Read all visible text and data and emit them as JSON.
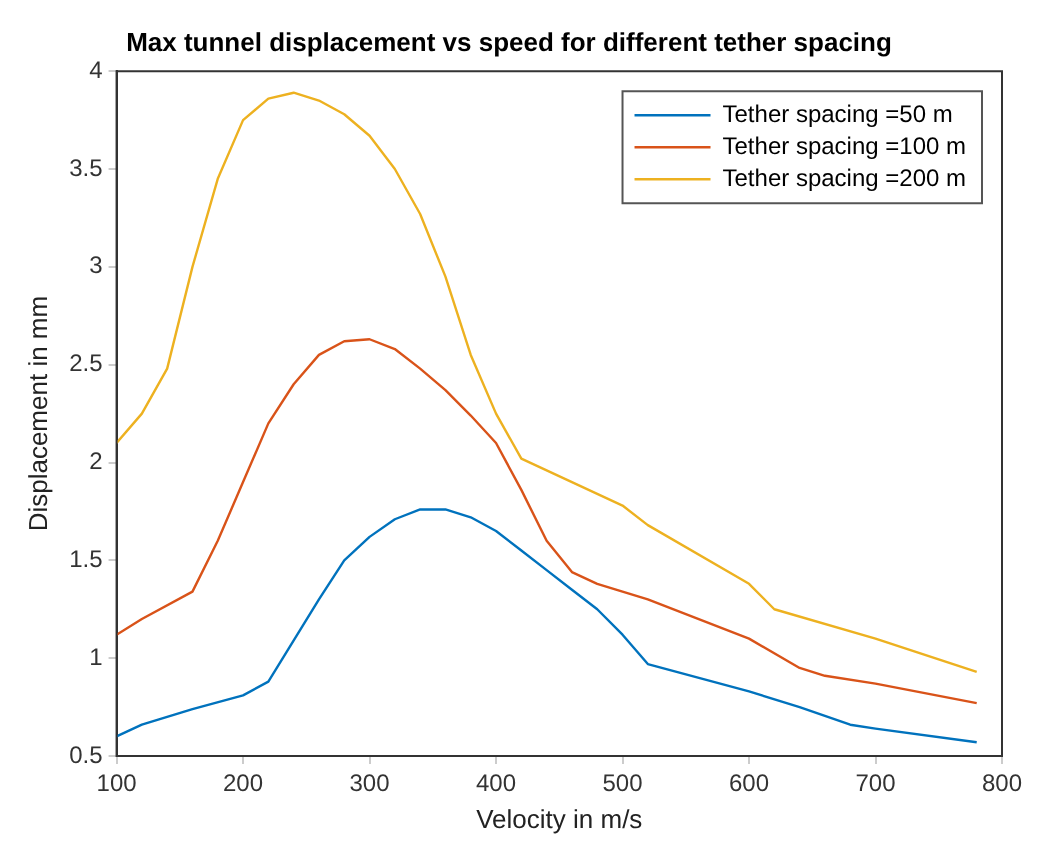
{
  "chart_data": {
    "type": "line",
    "title": "Max tunnel displacement vs speed for different tether spacing",
    "xlabel": "Velocity in m/s",
    "ylabel": "Displacement in mm",
    "xlim": [
      100,
      800
    ],
    "xticks": [
      100,
      200,
      300,
      400,
      500,
      600,
      700,
      800
    ],
    "ylim": [
      0.5,
      4
    ],
    "yticks": [
      0.5,
      1,
      1.5,
      2,
      2.5,
      3,
      3.5,
      4
    ],
    "grid": false,
    "legend": "top right",
    "marker": "none",
    "line_style": "solid",
    "series": [
      {
        "name": "Tether spacing =50 m",
        "color": "#0072bd",
        "x": [
          100,
          120,
          160,
          200,
          220,
          260,
          280,
          300,
          320,
          340,
          360,
          380,
          400,
          420,
          440,
          460,
          480,
          500,
          520,
          600,
          640,
          680,
          700,
          780
        ],
        "values": [
          0.6,
          0.66,
          0.74,
          0.81,
          0.88,
          1.3,
          1.5,
          1.62,
          1.71,
          1.76,
          1.76,
          1.72,
          1.65,
          1.55,
          1.45,
          1.35,
          1.25,
          1.12,
          0.97,
          0.83,
          0.75,
          0.66,
          0.64,
          0.57
        ]
      },
      {
        "name": "Tether spacing =100 m",
        "color": "#d95319",
        "x": [
          100,
          120,
          160,
          180,
          200,
          220,
          240,
          260,
          280,
          300,
          320,
          340,
          360,
          380,
          400,
          420,
          440,
          460,
          480,
          500,
          520,
          600,
          640,
          660,
          700,
          780
        ],
        "values": [
          1.12,
          1.2,
          1.34,
          1.6,
          1.9,
          2.2,
          2.4,
          2.55,
          2.62,
          2.63,
          2.58,
          2.48,
          2.37,
          2.24,
          2.1,
          1.86,
          1.6,
          1.44,
          1.38,
          1.34,
          1.3,
          1.1,
          0.95,
          0.91,
          0.87,
          0.77
        ]
      },
      {
        "name": "Tether spacing =200 m",
        "color": "#edb120",
        "x": [
          100,
          120,
          140,
          160,
          180,
          200,
          220,
          240,
          260,
          280,
          300,
          320,
          340,
          360,
          380,
          400,
          420,
          500,
          520,
          600,
          620,
          700,
          780
        ],
        "values": [
          2.1,
          2.25,
          2.48,
          3.0,
          3.45,
          3.75,
          3.86,
          3.89,
          3.85,
          3.78,
          3.67,
          3.5,
          3.27,
          2.95,
          2.55,
          2.25,
          2.02,
          1.78,
          1.68,
          1.38,
          1.25,
          1.1,
          0.93
        ]
      }
    ]
  }
}
